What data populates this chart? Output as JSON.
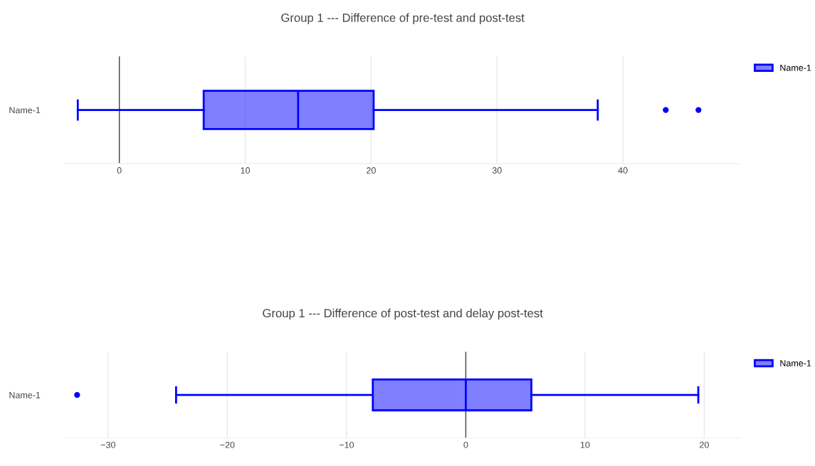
{
  "chart_data": [
    {
      "type": "box",
      "title": "Group 1 --- Difference of pre-test and post-test",
      "orientation": "horizontal",
      "categories": [
        "Name-1"
      ],
      "series": [
        {
          "name": "Name-1",
          "color": "#0000ff",
          "boxes": [
            {
              "low": -3.3,
              "q1": 6.7,
              "median": 14.2,
              "q3": 20.2,
              "high": 38.0,
              "outliers": [
                43.4,
                46.0
              ]
            }
          ]
        }
      ],
      "xlim": [
        -4.3,
        49.3
      ],
      "xticks": [
        0,
        10,
        20,
        30,
        40
      ],
      "grid": "x",
      "legend": "top right",
      "ref_lines": [
        {
          "axis": "x",
          "value": 0,
          "color": "#444444"
        }
      ]
    },
    {
      "type": "box",
      "title": "Group 1 --- Difference of post-test and delay post-test",
      "orientation": "horizontal",
      "categories": [
        "Name-1"
      ],
      "series": [
        {
          "name": "Name-1",
          "color": "#0000ff",
          "boxes": [
            {
              "low": -24.3,
              "q1": -7.8,
              "median": 0,
              "q3": 5.5,
              "high": 19.5,
              "outliers": [
                -32.6
              ]
            }
          ]
        }
      ],
      "xlim": [
        -33.6,
        23.0
      ],
      "xticks": [
        -30,
        -20,
        -10,
        0,
        10,
        20
      ],
      "grid": "x",
      "legend": "top right",
      "ref_lines": [
        {
          "axis": "x",
          "value": 0,
          "color": "#444444"
        }
      ]
    }
  ]
}
